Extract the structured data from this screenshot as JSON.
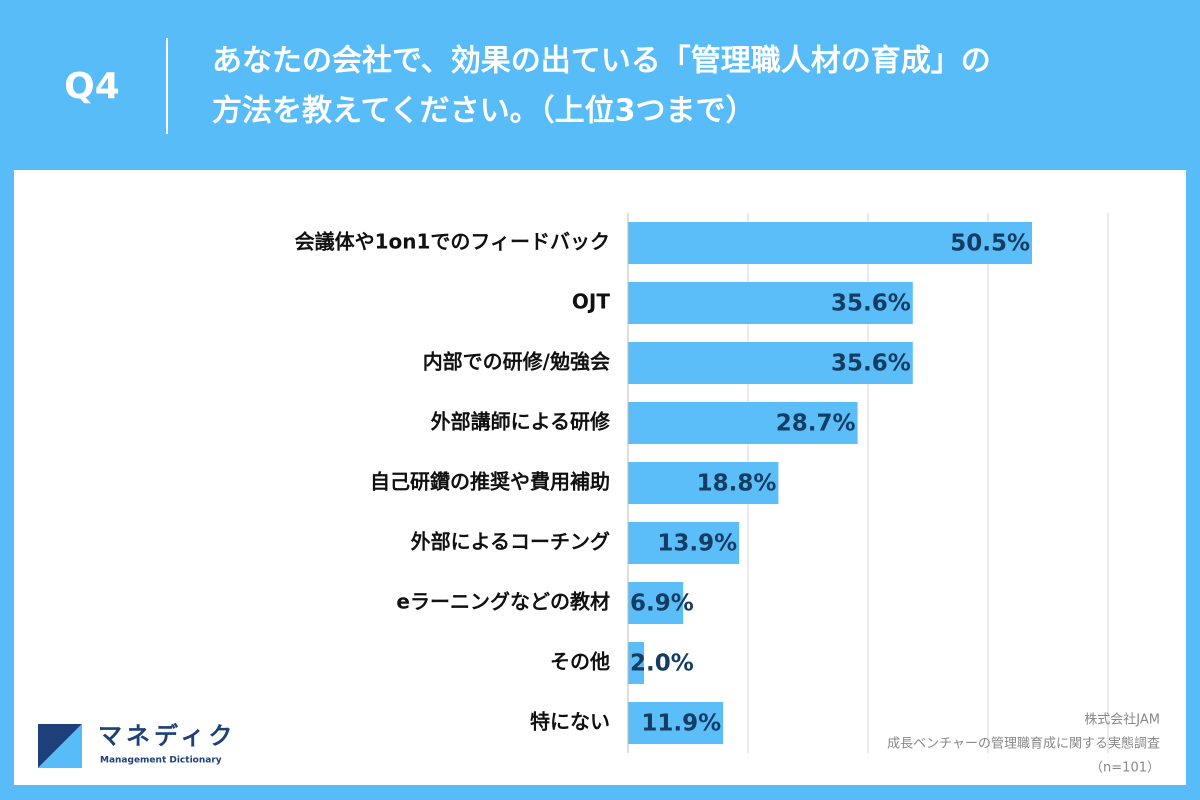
{
  "header": {
    "label": "Q4",
    "title": [
      "あなたの会社で、効果の出ている「管理職人材の育成」の",
      "方法を教えてください。（上位3つまで）"
    ]
  },
  "chart_data": {
    "type": "barh",
    "categories": [
      "会議体や1on1でのフィードバック",
      "OJT",
      "内部での研修/勉強会",
      "外部講師による研修",
      "自己研鑽の推奨や費用補助",
      "外部によるコーチング",
      "eラーニングなどの教材",
      "その他",
      "特にない"
    ],
    "values": [
      50.5,
      35.6,
      35.6,
      28.7,
      18.8,
      13.9,
      6.9,
      2.0,
      11.9
    ],
    "value_labels": [
      "50.5%",
      "35.6%",
      "35.6%",
      "28.7%",
      "18.8%",
      "13.9%",
      "6.9%",
      "2.0%",
      "11.9%"
    ],
    "color": "#5bbef9",
    "label_color": "#143d63",
    "xlim": [
      0,
      60
    ],
    "xticks": [
      0,
      15,
      30,
      45,
      60
    ],
    "grid": true
  },
  "logo": {
    "name": "マネディク",
    "subtitle": "Management Dictionary"
  },
  "source": [
    "株式会社JAM",
    "成長ベンチャーの管理職育成に関する実態調査",
    "（n=101）"
  ]
}
